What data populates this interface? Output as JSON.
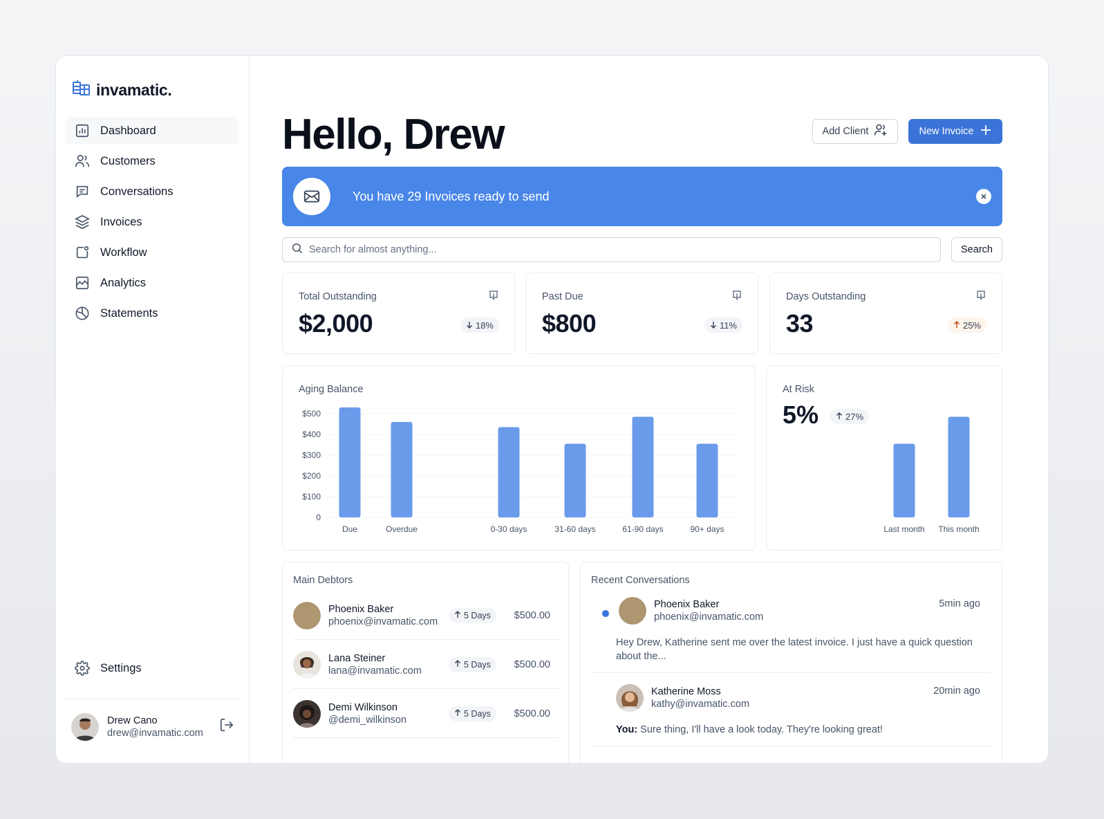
{
  "brand": {
    "name": "invamatic."
  },
  "sidebar": {
    "items": [
      {
        "label": "Dashboard",
        "icon": "bar-chart-icon"
      },
      {
        "label": "Customers",
        "icon": "users-icon"
      },
      {
        "label": "Conversations",
        "icon": "message-icon"
      },
      {
        "label": "Invoices",
        "icon": "layers-icon"
      },
      {
        "label": "Workflow",
        "icon": "workflow-icon"
      },
      {
        "label": "Analytics",
        "icon": "line-chart-icon"
      },
      {
        "label": "Statements",
        "icon": "pie-chart-icon"
      }
    ],
    "settings_label": "Settings"
  },
  "user": {
    "name": "Drew Cano",
    "email": "drew@invamatic.com"
  },
  "header": {
    "greeting": "Hello, Drew",
    "add_client_label": "Add Client",
    "new_invoice_label": "New Invoice"
  },
  "banner": {
    "text": "You have 29 Invoices ready to send"
  },
  "search": {
    "placeholder": "Search for almost anything...",
    "button_label": "Search"
  },
  "stats": [
    {
      "label": "Total Outstanding",
      "value": "$2,000",
      "change": "18%",
      "direction": "down"
    },
    {
      "label": "Past Due",
      "value": "$800",
      "change": "11%",
      "direction": "down"
    },
    {
      "label": "Days Outstanding",
      "value": "33",
      "change": "25%",
      "direction": "up"
    }
  ],
  "aging": {
    "title": "Aging Balance"
  },
  "at_risk": {
    "title": "At Risk",
    "value": "5%",
    "change": "27%"
  },
  "chart_data": [
    {
      "type": "bar",
      "title": "Aging Balance",
      "categories": [
        "Due",
        "Overdue",
        "0-30 days",
        "31-60 days",
        "61-90 days",
        "90+ days"
      ],
      "values": [
        530,
        460,
        435,
        355,
        485,
        355
      ],
      "yticks": [
        "0",
        "$100",
        "$200",
        "$300",
        "$400",
        "$500"
      ],
      "ylim": [
        0,
        500
      ],
      "grid": true
    },
    {
      "type": "bar",
      "title": "At Risk",
      "categories": [
        "Last month",
        "This month"
      ],
      "values": [
        355,
        485
      ],
      "ylim": [
        0,
        500
      ]
    }
  ],
  "debtors": {
    "title": "Main Debtors",
    "items": [
      {
        "name": "Phoenix Baker",
        "email": "phoenix@invamatic.com",
        "days": "5 Days",
        "amount": "$500.00"
      },
      {
        "name": "Lana Steiner",
        "email": "lana@invamatic.com",
        "days": "5 Days",
        "amount": "$500.00"
      },
      {
        "name": "Demi Wilkinson",
        "email": "@demi_wilkinson",
        "days": "5 Days",
        "amount": "$500.00"
      }
    ]
  },
  "conversations": {
    "title": "Recent Conversations",
    "items": [
      {
        "name": "Phoenix Baker",
        "email": "phoenix@invamatic.com",
        "time": "5min ago",
        "message": "Hey Drew, Katherine sent me over the latest invoice. I just have a quick question about the...",
        "prefix": ""
      },
      {
        "name": "Katherine Moss",
        "email": "kathy@invamatic.com",
        "time": "20min ago",
        "message": "Sure thing, I'll have a look today. They're looking great!",
        "prefix": "You:"
      }
    ]
  },
  "colors": {
    "accent": "#3b74d8",
    "banner": "#4886e8",
    "bar": "#6a9bea"
  }
}
